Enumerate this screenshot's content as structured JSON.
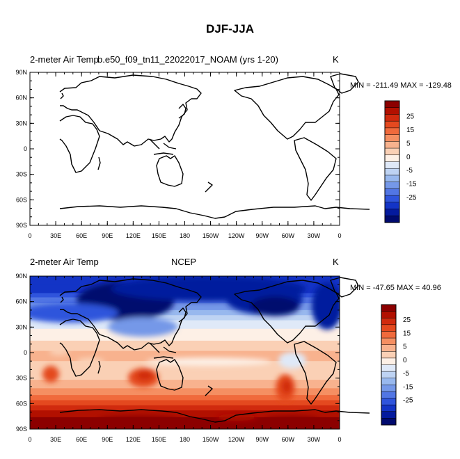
{
  "figure_title": "DJF-JJA",
  "panels": [
    {
      "left_title": "2-meter Air Temp",
      "center_title": "b.e50_f09_tn11_22022017_NOAM (yrs 1-20)",
      "units": "K",
      "minmax": "MIN = -211.49 MAX = -129.48",
      "filled": false
    },
    {
      "left_title": "2-meter Air Temp",
      "center_title": "NCEP",
      "units": "K",
      "minmax": "MIN = -47.65 MAX =  40.96",
      "filled": true
    }
  ],
  "lat_ticks": [
    "90N",
    "60N",
    "30N",
    "0",
    "30S",
    "60S",
    "90S"
  ],
  "lon_ticks": [
    "0",
    "30E",
    "60E",
    "90E",
    "120E",
    "150E",
    "180",
    "150W",
    "120W",
    "90W",
    "60W",
    "30W",
    "0"
  ],
  "colorbar": {
    "labels": [
      "25",
      "15",
      "5",
      "0",
      "-5",
      "-15",
      "-25"
    ],
    "colors": [
      "#8c0000",
      "#b21000",
      "#d02a0e",
      "#e4491f",
      "#f06a3c",
      "#f58f62",
      "#f8b28e",
      "#fad0b5",
      "#fdf0e6",
      "#dfe9f8",
      "#bed3f3",
      "#98b8ee",
      "#7598e8",
      "#5276e4",
      "#2f54dc",
      "#1334c6",
      "#041a9e",
      "#000a6e"
    ]
  },
  "chart_data": [
    {
      "type": "heatmap",
      "title": "2-meter Air Temp",
      "subtitle": "b.e50_f09_tn11_22022017_NOAM (yrs 1-20)",
      "units": "K",
      "min": -211.49,
      "max": -129.48,
      "xlim": [
        0,
        360
      ],
      "ylim": [
        -90,
        90
      ],
      "levels": [
        -25,
        -15,
        -5,
        0,
        5,
        15,
        25
      ]
    },
    {
      "type": "heatmap",
      "title": "2-meter Air Temp",
      "subtitle": "NCEP",
      "units": "K",
      "min": -47.65,
      "max": 40.96,
      "xlim": [
        0,
        360
      ],
      "ylim": [
        -90,
        90
      ],
      "levels": [
        -25,
        -15,
        -5,
        0,
        5,
        15,
        25
      ]
    }
  ]
}
